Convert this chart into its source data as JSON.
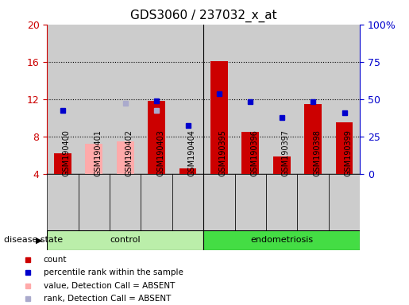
{
  "title": "GDS3060 / 237032_x_at",
  "samples": [
    "GSM190400",
    "GSM190401",
    "GSM190402",
    "GSM190403",
    "GSM190404",
    "GSM190395",
    "GSM190396",
    "GSM190397",
    "GSM190398",
    "GSM190399"
  ],
  "groups": [
    "control",
    "control",
    "control",
    "control",
    "control",
    "endometriosis",
    "endometriosis",
    "endometriosis",
    "endometriosis",
    "endometriosis"
  ],
  "count_values": [
    6.2,
    null,
    null,
    11.8,
    4.6,
    16.1,
    8.5,
    5.9,
    11.5,
    9.5
  ],
  "count_absent": [
    null,
    7.2,
    7.5,
    null,
    null,
    null,
    null,
    null,
    null,
    null
  ],
  "rank_values": [
    10.8,
    null,
    null,
    11.8,
    9.2,
    12.6,
    11.7,
    10.0,
    11.7,
    10.5
  ],
  "rank_absent": [
    null,
    null,
    11.6,
    10.8,
    null,
    null,
    null,
    null,
    null,
    null
  ],
  "ylim_left": [
    4,
    20
  ],
  "ylim_right": [
    0,
    100
  ],
  "yticks_left": [
    4,
    8,
    12,
    16,
    20
  ],
  "yticks_right": [
    0,
    25,
    50,
    75,
    100
  ],
  "ytick_labels_right": [
    "0",
    "25",
    "50",
    "75",
    "100%"
  ],
  "bar_bottom": 4,
  "color_count": "#cc0000",
  "color_count_absent": "#ffaaaa",
  "color_rank": "#0000cc",
  "color_rank_absent": "#aaaacc",
  "group_color_control": "#bbeeaa",
  "group_color_endometriosis": "#44dd44",
  "col_bg": "#cccccc",
  "plot_bg": "#ffffff",
  "grid_lines": [
    8,
    12,
    16
  ]
}
